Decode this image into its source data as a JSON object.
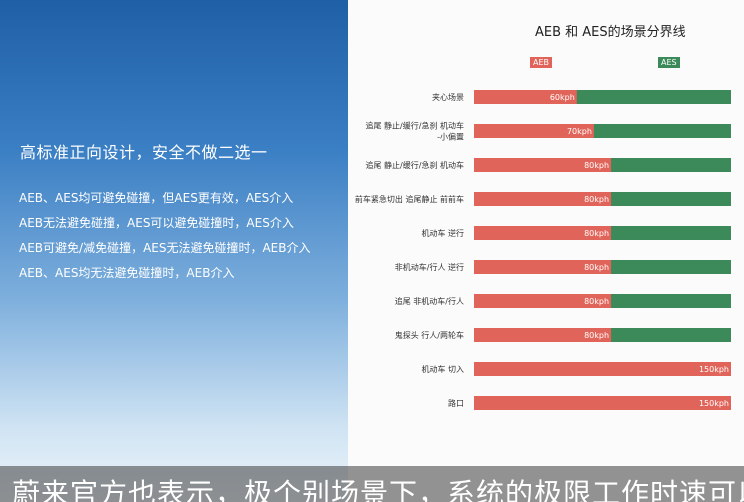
{
  "left": {
    "headline": "高标准正向设计，安全不做二选一",
    "bullets": [
      "AEB、AES均可避免碰撞，但AES更有效，AES介入",
      "AEB无法避免碰撞，AES可以避免碰撞时，AES介入",
      "AEB可避免/减免碰撞，AES无法避免碰撞时，AEB介入",
      "AEB、AES均无法避免碰撞时，AEB介入"
    ]
  },
  "caption": "蔚来官方也表示，极个别场景下，系统的极限工作时速可以",
  "colors": {
    "aeb": "#e0645a",
    "aes": "#3c8a5a"
  },
  "chart_data": {
    "type": "bar",
    "title": "AEB 和 AES的场景分界线",
    "legend": [
      "AEB",
      "AES"
    ],
    "unit": "kph",
    "xlim": [
      0,
      150
    ],
    "categories": [
      "夹心场景",
      "追尾 静止/缓行/急刹 机动车\n-小偏置",
      "追尾 静止/缓行/急刹 机动车",
      "前车紧急切出 追尾静止 前前车",
      "机动车 逆行",
      "非机动车/行人 逆行",
      "追尾 非机动车/行人",
      "鬼探头 行人/两轮车",
      "机动车 切入",
      "路口"
    ],
    "values": [
      60,
      70,
      80,
      80,
      80,
      80,
      80,
      80,
      150,
      150
    ],
    "labels": [
      "60kph",
      "70kph",
      "80kph",
      "80kph",
      "80kph",
      "80kph",
      "80kph",
      "80kph",
      "150kph",
      "150kph"
    ]
  }
}
